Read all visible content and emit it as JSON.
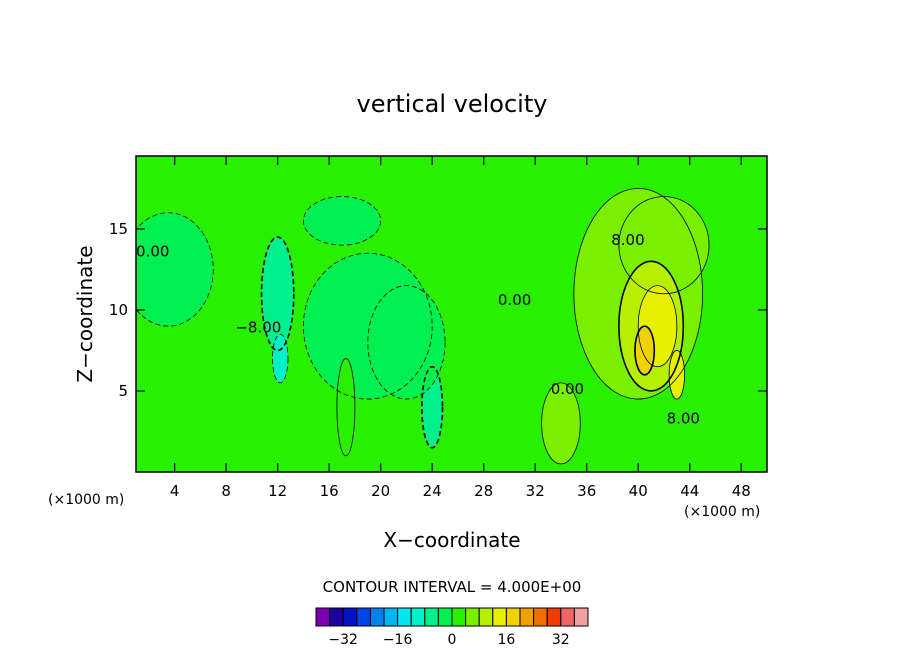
{
  "chart_data": {
    "type": "heatmap",
    "title": "vertical velocity",
    "xlabel": "X−coordinate",
    "ylabel": "Z−coordinate",
    "x_unit_left": "(×1000 m)",
    "x_unit_right": "(×1000 m)",
    "xlim": [
      1,
      50
    ],
    "ylim": [
      0,
      19.5
    ],
    "x_ticks": [
      4,
      8,
      12,
      16,
      20,
      24,
      28,
      32,
      36,
      40,
      44,
      48
    ],
    "y_ticks": [
      5,
      10,
      15
    ],
    "contour_interval_label": "CONTOUR INTERVAL = 4.000E+00",
    "contour_labels": [
      {
        "text": "0.00",
        "x": 2.3,
        "y": 13.3
      },
      {
        "text": "−8.00",
        "x": 10.5,
        "y": 8.6
      },
      {
        "text": "0.00",
        "x": 30.4,
        "y": 10.3
      },
      {
        "text": "0.00",
        "x": 34.5,
        "y": 4.8
      },
      {
        "text": "8.00",
        "x": 39.2,
        "y": 14.0
      },
      {
        "text": "8.00",
        "x": 43.5,
        "y": 3.0
      }
    ],
    "colorbar": {
      "ticks": [
        "−32",
        "−16",
        "0",
        "16",
        "32"
      ],
      "tick_values": [
        -32,
        -16,
        0,
        16,
        32
      ],
      "levels": [
        -40,
        40
      ],
      "colors": [
        "#7a00b4",
        "#1e00a0",
        "#0014c8",
        "#0046e6",
        "#0082f0",
        "#00b4f0",
        "#00e6f0",
        "#00f0c8",
        "#00f08c",
        "#00f050",
        "#28f000",
        "#78f000",
        "#b4f000",
        "#e6f000",
        "#f0d200",
        "#f0a000",
        "#f06e00",
        "#f03c00",
        "#f06464",
        "#f0a0a0"
      ]
    },
    "field": {
      "background_value": 0,
      "cells": [
        {
          "x": 3.5,
          "y": 12.5,
          "w": 7,
          "h": 7,
          "v": -4
        },
        {
          "x": 12,
          "y": 11,
          "w": 2.5,
          "h": 7,
          "v": -8
        },
        {
          "x": 12.2,
          "y": 7,
          "w": 1.2,
          "h": 3,
          "v": -12
        },
        {
          "x": 17,
          "y": 15.5,
          "w": 6,
          "h": 3,
          "v": -4
        },
        {
          "x": 19,
          "y": 9,
          "w": 10,
          "h": 9,
          "v": -4
        },
        {
          "x": 24,
          "y": 4,
          "w": 1.6,
          "h": 5,
          "v": -8
        },
        {
          "x": 22,
          "y": 8,
          "w": 6,
          "h": 7,
          "v": -4
        },
        {
          "x": 17.3,
          "y": 4,
          "w": 1.4,
          "h": 6,
          "v": 2
        },
        {
          "x": 40,
          "y": 11,
          "w": 10,
          "h": 13,
          "v": 4
        },
        {
          "x": 42,
          "y": 14,
          "w": 7,
          "h": 6,
          "v": 4
        },
        {
          "x": 41,
          "y": 9,
          "w": 5,
          "h": 8,
          "v": 8
        },
        {
          "x": 41.5,
          "y": 9,
          "w": 3,
          "h": 5,
          "v": 12
        },
        {
          "x": 40.5,
          "y": 7.5,
          "w": 1.5,
          "h": 3,
          "v": 16
        },
        {
          "x": 43,
          "y": 6,
          "w": 1.2,
          "h": 3,
          "v": 12
        },
        {
          "x": 34,
          "y": 3,
          "w": 3,
          "h": 5,
          "v": 4
        }
      ]
    }
  }
}
